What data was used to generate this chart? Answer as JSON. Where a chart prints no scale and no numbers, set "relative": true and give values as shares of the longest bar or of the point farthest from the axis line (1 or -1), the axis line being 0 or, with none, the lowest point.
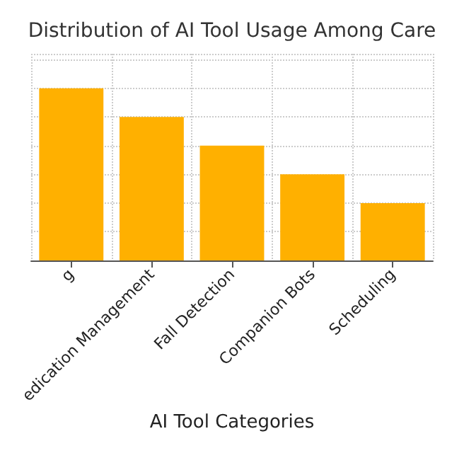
{
  "chart_data": {
    "type": "bar",
    "title": "Distribution of AI Tool Usage Among Care",
    "xlabel": "AI Tool Categories",
    "categories": [
      "g",
      "edication Management",
      "Fall Detection",
      "Companion Bots",
      "Scheduling"
    ],
    "values": [
      1,
      0.833,
      0.667,
      0.5,
      0.333
    ],
    "color": "#ffb000",
    "relative": true,
    "grid": true
  }
}
